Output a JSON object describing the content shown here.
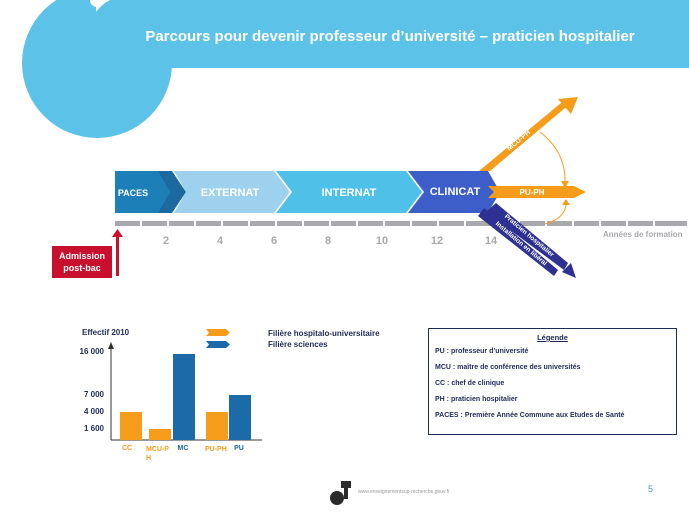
{
  "header": {
    "title": "Parcours pour devenir professeur d’université – praticien hospitalier"
  },
  "timeline": {
    "phases": [
      "PACES",
      "EXTERNAT",
      "INTERNAT",
      "CLINICAT"
    ],
    "years": [
      "2",
      "4",
      "6",
      "8",
      "10",
      "12",
      "14"
    ],
    "axis_caption": "Années de formation",
    "admission": {
      "line1": "Admission",
      "line2": "post-bac"
    },
    "branches": {
      "up": "MCU-PH",
      "middle": "PU-PH",
      "down_line1": "Praticien hospitalier",
      "down_line2": "Installation en libéral"
    }
  },
  "key": {
    "hospitalo": "Filière hospitalo-universitaire",
    "sciences": "Filière sciences"
  },
  "chart_data": {
    "type": "bar",
    "ylabel": "Effectif 2010",
    "y_ticks": [
      "16 000",
      "7 000",
      "4 000",
      "1 600"
    ],
    "categories": [
      "CC",
      "MCU-PH",
      "MC",
      "PU-PH",
      "PU"
    ],
    "series": [
      {
        "name": "Filière hospitalo-universitaire",
        "color": "#f59c1a",
        "values": [
          4000,
          1600,
          null,
          4000,
          null
        ]
      },
      {
        "name": "Filière sciences",
        "color": "#1c6aa8",
        "values": [
          null,
          null,
          16000,
          null,
          7000
        ]
      }
    ]
  },
  "definitions": {
    "title": "Légende",
    "items": [
      "PU : professeur d’université",
      "MCU : maître de conférence des universités",
      "CC : chef de clinique",
      "PH : praticien hospitalier",
      "PACES : Première Année Commune aux Etudes de Santé"
    ]
  },
  "footer": {
    "page_number": "5",
    "url": "www.enseignementsup-recherche.gouv.fr"
  },
  "colors": {
    "header_blue": "#5cc2e8",
    "orange": "#f59c1a",
    "navy": "#2e3192",
    "sciences_blue": "#1c6aa8",
    "red": "#c8102e"
  }
}
